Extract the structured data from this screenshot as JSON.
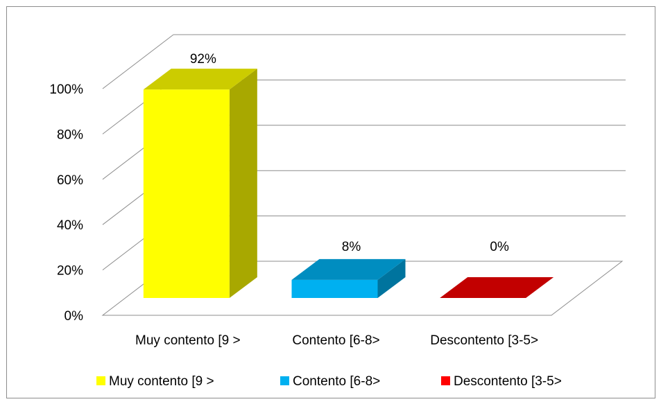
{
  "chart_data": {
    "type": "bar3d",
    "categories": [
      "Muy contento [9 >",
      "Contento [6-8>",
      "Descontento [3-5>"
    ],
    "values": [
      92,
      8,
      0
    ],
    "value_labels": [
      "92%",
      "8%",
      "0%"
    ],
    "colors": [
      "#ffff00",
      "#00b0f0",
      "#ff0000"
    ],
    "ylim": [
      0,
      100
    ],
    "yticks": [
      {
        "value": 0,
        "label": "0%"
      },
      {
        "value": 20,
        "label": "20%"
      },
      {
        "value": 40,
        "label": "40%"
      },
      {
        "value": 60,
        "label": "60%"
      },
      {
        "value": 80,
        "label": "80%"
      },
      {
        "value": 100,
        "label": "100%"
      }
    ],
    "grid": true,
    "legend": "bottom"
  }
}
